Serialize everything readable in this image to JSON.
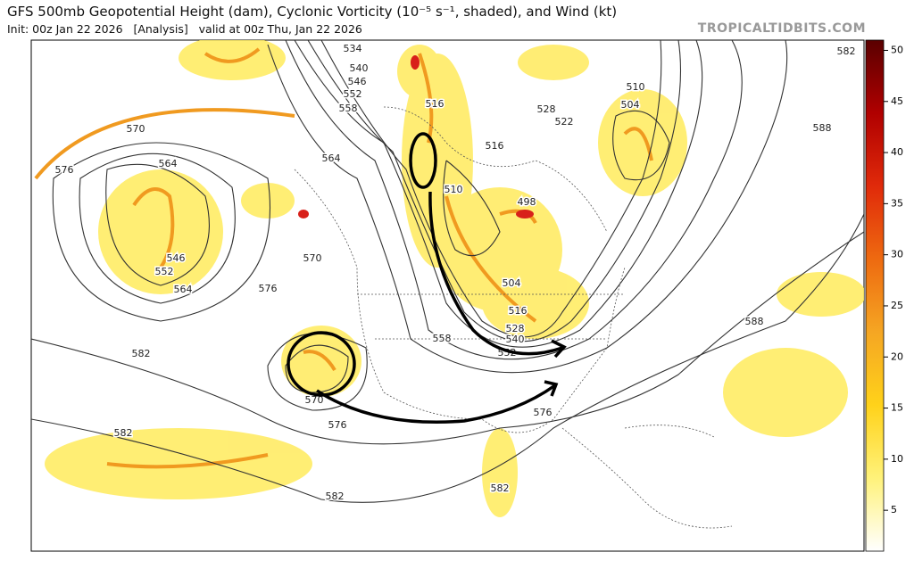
{
  "header": {
    "title": "GFS 500mb Geopotential Height (dam), Cyclonic Vorticity (10⁻⁵ s⁻¹, shaded), and Wind (kt)",
    "subtitle": "Init: 00z Jan 22 2026   [Analysis]   valid at 00z Thu, Jan 22 2026",
    "watermark": "TROPICALTIDBITS.COM"
  },
  "colorbar": {
    "lim": [
      1,
      51
    ],
    "ticks": [
      5,
      10,
      15,
      20,
      25,
      30,
      35,
      40,
      45,
      50
    ],
    "colors": [
      "#ffffff",
      "#fff27a",
      "#ffd21a",
      "#f5a623",
      "#ee6a10",
      "#e02a0a",
      "#b00000",
      "#5a0000"
    ]
  },
  "contour_labels": [
    "534",
    "540",
    "546",
    "552",
    "558",
    "516",
    "528",
    "522",
    "510",
    "504",
    "588",
    "582",
    "570",
    "576",
    "564",
    "564",
    "546",
    "552",
    "564",
    "570",
    "576",
    "582",
    "582",
    "582",
    "582",
    "570",
    "576",
    "558",
    "540",
    "552",
    "528",
    "516",
    "504",
    "498",
    "510",
    "516",
    "588",
    "576"
  ]
}
